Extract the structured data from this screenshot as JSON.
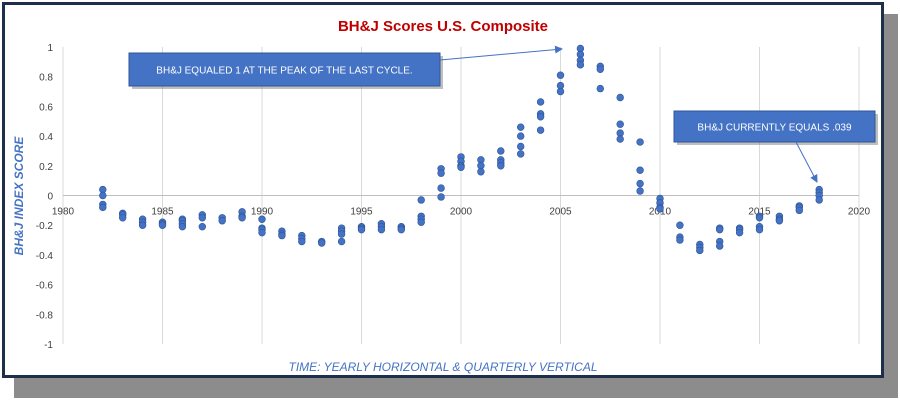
{
  "chart_data": {
    "type": "scatter",
    "title": "BH&J Scores U.S. Composite",
    "xlabel": "TIME: YEARLY HORIZONTAL & QUARTERLY VERTICAL",
    "ylabel": "BH&J INDEX SCORE",
    "xlim": [
      1980,
      2020
    ],
    "ylim": [
      -1,
      1
    ],
    "x_ticks": [
      "1980",
      "1985",
      "1990",
      "1995",
      "2000",
      "2005",
      "2010",
      "2015",
      "2020"
    ],
    "y_ticks": [
      "1",
      "0.8",
      "0.6",
      "0.4",
      "0.2",
      "0",
      "-0.2",
      "-0.4",
      "-0.6",
      "-0.8",
      "-1"
    ],
    "grid": "vertical",
    "marker_color": "#4472c4",
    "title_color": "#c00000",
    "label_color": "#4472c4",
    "points": [
      {
        "x": 1982,
        "y": 0.04
      },
      {
        "x": 1982,
        "y": 0.0
      },
      {
        "x": 1982,
        "y": -0.06
      },
      {
        "x": 1982,
        "y": -0.08
      },
      {
        "x": 1983,
        "y": -0.12
      },
      {
        "x": 1983,
        "y": -0.13
      },
      {
        "x": 1983,
        "y": -0.15
      },
      {
        "x": 1984,
        "y": -0.16
      },
      {
        "x": 1984,
        "y": -0.18
      },
      {
        "x": 1984,
        "y": -0.2
      },
      {
        "x": 1985,
        "y": -0.18
      },
      {
        "x": 1985,
        "y": -0.19
      },
      {
        "x": 1985,
        "y": -0.2
      },
      {
        "x": 1986,
        "y": -0.16
      },
      {
        "x": 1986,
        "y": -0.17
      },
      {
        "x": 1986,
        "y": -0.19
      },
      {
        "x": 1986,
        "y": -0.21
      },
      {
        "x": 1987,
        "y": -0.13
      },
      {
        "x": 1987,
        "y": -0.15
      },
      {
        "x": 1987,
        "y": -0.21
      },
      {
        "x": 1988,
        "y": -0.15
      },
      {
        "x": 1988,
        "y": -0.17
      },
      {
        "x": 1989,
        "y": -0.11
      },
      {
        "x": 1989,
        "y": -0.14
      },
      {
        "x": 1989,
        "y": -0.15
      },
      {
        "x": 1990,
        "y": -0.16
      },
      {
        "x": 1990,
        "y": -0.22
      },
      {
        "x": 1990,
        "y": -0.23
      },
      {
        "x": 1990,
        "y": -0.25
      },
      {
        "x": 1991,
        "y": -0.24
      },
      {
        "x": 1991,
        "y": -0.26
      },
      {
        "x": 1991,
        "y": -0.27
      },
      {
        "x": 1992,
        "y": -0.27
      },
      {
        "x": 1992,
        "y": -0.29
      },
      {
        "x": 1992,
        "y": -0.31
      },
      {
        "x": 1993,
        "y": -0.31
      },
      {
        "x": 1993,
        "y": -0.32
      },
      {
        "x": 1994,
        "y": -0.22
      },
      {
        "x": 1994,
        "y": -0.24
      },
      {
        "x": 1994,
        "y": -0.26
      },
      {
        "x": 1994,
        "y": -0.31
      },
      {
        "x": 1995,
        "y": -0.21
      },
      {
        "x": 1995,
        "y": -0.22
      },
      {
        "x": 1995,
        "y": -0.23
      },
      {
        "x": 1996,
        "y": -0.19
      },
      {
        "x": 1996,
        "y": -0.21
      },
      {
        "x": 1996,
        "y": -0.23
      },
      {
        "x": 1997,
        "y": -0.21
      },
      {
        "x": 1997,
        "y": -0.22
      },
      {
        "x": 1997,
        "y": -0.23
      },
      {
        "x": 1998,
        "y": -0.03
      },
      {
        "x": 1998,
        "y": -0.14
      },
      {
        "x": 1998,
        "y": -0.16
      },
      {
        "x": 1998,
        "y": -0.18
      },
      {
        "x": 1999,
        "y": 0.18
      },
      {
        "x": 1999,
        "y": 0.15
      },
      {
        "x": 1999,
        "y": 0.05
      },
      {
        "x": 1999,
        "y": -0.01
      },
      {
        "x": 2000,
        "y": 0.26
      },
      {
        "x": 2000,
        "y": 0.23
      },
      {
        "x": 2000,
        "y": 0.2
      },
      {
        "x": 2000,
        "y": 0.19
      },
      {
        "x": 2001,
        "y": 0.24
      },
      {
        "x": 2001,
        "y": 0.2
      },
      {
        "x": 2001,
        "y": 0.16
      },
      {
        "x": 2002,
        "y": 0.3
      },
      {
        "x": 2002,
        "y": 0.24
      },
      {
        "x": 2002,
        "y": 0.22
      },
      {
        "x": 2002,
        "y": 0.2
      },
      {
        "x": 2003,
        "y": 0.46
      },
      {
        "x": 2003,
        "y": 0.4
      },
      {
        "x": 2003,
        "y": 0.33
      },
      {
        "x": 2003,
        "y": 0.28
      },
      {
        "x": 2004,
        "y": 0.63
      },
      {
        "x": 2004,
        "y": 0.55
      },
      {
        "x": 2004,
        "y": 0.53
      },
      {
        "x": 2004,
        "y": 0.44
      },
      {
        "x": 2005,
        "y": 0.81
      },
      {
        "x": 2005,
        "y": 0.74
      },
      {
        "x": 2005,
        "y": 0.7
      },
      {
        "x": 2006,
        "y": 0.99
      },
      {
        "x": 2006,
        "y": 0.95
      },
      {
        "x": 2006,
        "y": 0.91
      },
      {
        "x": 2006,
        "y": 0.88
      },
      {
        "x": 2007,
        "y": 0.87
      },
      {
        "x": 2007,
        "y": 0.85
      },
      {
        "x": 2007,
        "y": 0.72
      },
      {
        "x": 2008,
        "y": 0.66
      },
      {
        "x": 2008,
        "y": 0.48
      },
      {
        "x": 2008,
        "y": 0.42
      },
      {
        "x": 2008,
        "y": 0.38
      },
      {
        "x": 2009,
        "y": 0.36
      },
      {
        "x": 2009,
        "y": 0.17
      },
      {
        "x": 2009,
        "y": 0.08
      },
      {
        "x": 2009,
        "y": 0.03
      },
      {
        "x": 2010,
        "y": -0.02
      },
      {
        "x": 2010,
        "y": -0.05
      },
      {
        "x": 2010,
        "y": -0.08
      },
      {
        "x": 2010,
        "y": -0.09
      },
      {
        "x": 2011,
        "y": -0.2
      },
      {
        "x": 2011,
        "y": -0.28
      },
      {
        "x": 2011,
        "y": -0.3
      },
      {
        "x": 2012,
        "y": -0.33
      },
      {
        "x": 2012,
        "y": -0.35
      },
      {
        "x": 2012,
        "y": -0.37
      },
      {
        "x": 2013,
        "y": -0.22
      },
      {
        "x": 2013,
        "y": -0.23
      },
      {
        "x": 2013,
        "y": -0.31
      },
      {
        "x": 2013,
        "y": -0.34
      },
      {
        "x": 2014,
        "y": -0.22
      },
      {
        "x": 2014,
        "y": -0.23
      },
      {
        "x": 2014,
        "y": -0.25
      },
      {
        "x": 2015,
        "y": -0.14
      },
      {
        "x": 2015,
        "y": -0.15
      },
      {
        "x": 2015,
        "y": -0.21
      },
      {
        "x": 2015,
        "y": -0.23
      },
      {
        "x": 2016,
        "y": -0.14
      },
      {
        "x": 2016,
        "y": -0.16
      },
      {
        "x": 2016,
        "y": -0.17
      },
      {
        "x": 2017,
        "y": -0.07
      },
      {
        "x": 2017,
        "y": -0.08
      },
      {
        "x": 2017,
        "y": -0.1
      },
      {
        "x": 2018,
        "y": 0.04
      },
      {
        "x": 2018,
        "y": 0.02
      },
      {
        "x": 2018,
        "y": 0.0
      },
      {
        "x": 2018,
        "y": -0.03
      }
    ],
    "annotations": [
      {
        "text": "BH&J EQUALED 1 AT THE PEAK OF THE LAST CYCLE.",
        "target_x": 2006,
        "target_y": 1.0
      },
      {
        "text": "BH&J CURRENTLY EQUALS .039",
        "target_x": 2018,
        "target_y": 0.04
      }
    ],
    "annotation_bg": "#4472c4",
    "annotation_text_color": "#ffffff"
  }
}
